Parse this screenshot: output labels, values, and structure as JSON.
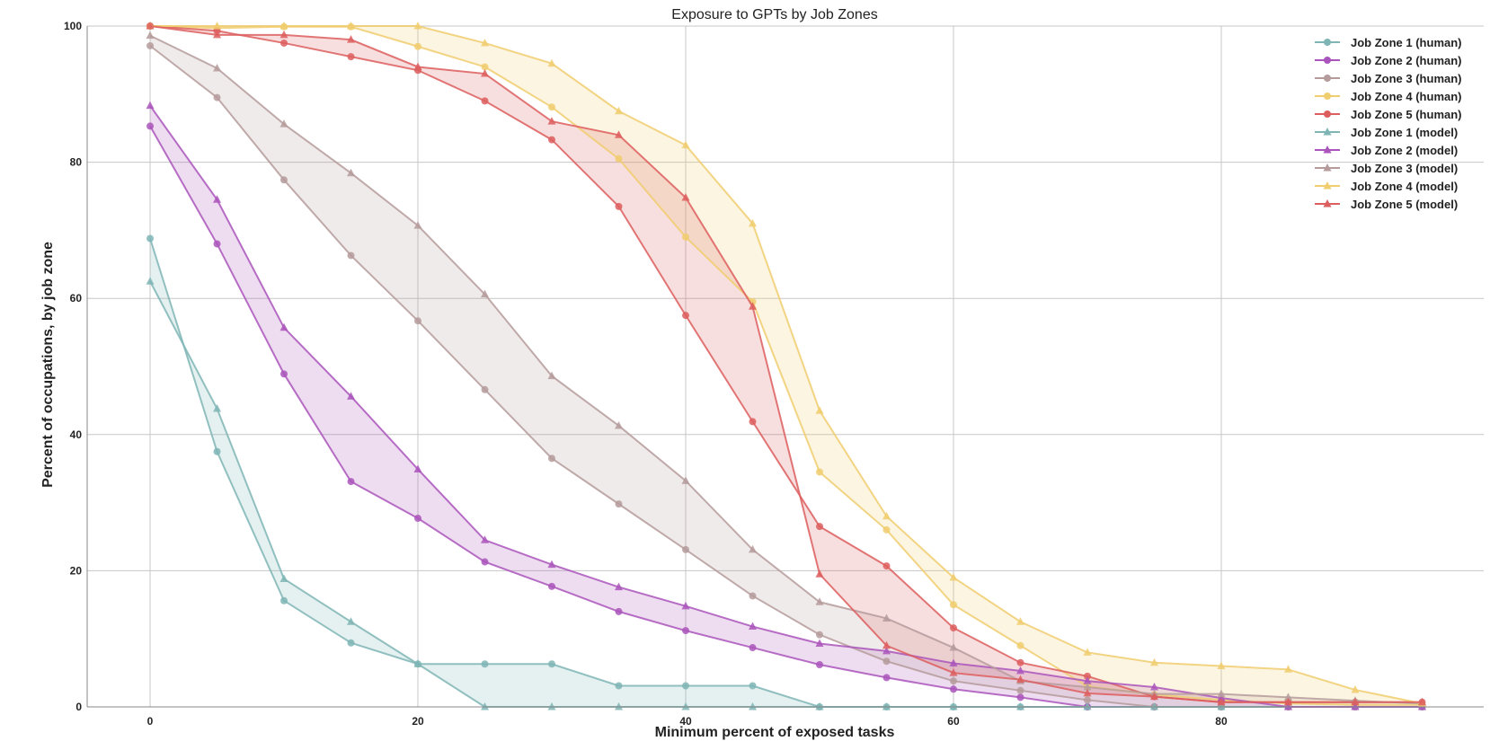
{
  "chart_data": {
    "type": "line",
    "title": "Exposure to GPTs by Job Zones",
    "xlabel": "Minimum percent of exposed tasks",
    "ylabel": "Percent of occupations, by job zone",
    "xlim": [
      -4.7,
      99.6
    ],
    "ylim": [
      0,
      100
    ],
    "xticks": [
      0,
      20,
      40,
      60,
      80
    ],
    "yticks": [
      0,
      20,
      40,
      60,
      80,
      100
    ],
    "grid": true,
    "legend_position": "top-right",
    "x": [
      0,
      5,
      10,
      15,
      20,
      25,
      30,
      35,
      40,
      45,
      50,
      55,
      60,
      65,
      70,
      75,
      80,
      85,
      90,
      95
    ],
    "series": [
      {
        "name": "Job Zone 1 (human)",
        "color": "#7fb5b5",
        "marker": "circle",
        "values": [
          68.8,
          37.5,
          15.6,
          9.4,
          6.3,
          6.3,
          6.3,
          3.1,
          3.1,
          3.1,
          0,
          0,
          0,
          0,
          0,
          0,
          0,
          0,
          0,
          0
        ]
      },
      {
        "name": "Job Zone 2 (human)",
        "color": "#aa55bb",
        "marker": "circle",
        "values": [
          85.3,
          68.0,
          48.9,
          33.1,
          27.7,
          21.3,
          17.7,
          14.0,
          11.2,
          8.7,
          6.2,
          4.3,
          2.6,
          1.4,
          0,
          0,
          0,
          0,
          0,
          0
        ]
      },
      {
        "name": "Job Zone 3 (human)",
        "color": "#b59b9b",
        "marker": "circle",
        "values": [
          97.1,
          89.5,
          77.4,
          66.3,
          56.7,
          46.6,
          36.5,
          29.8,
          23.1,
          16.3,
          10.6,
          6.7,
          3.8,
          2.4,
          1.0,
          0,
          0,
          0,
          0,
          0
        ]
      },
      {
        "name": "Job Zone 4 (human)",
        "color": "#f0cd6e",
        "marker": "circle",
        "values": [
          100,
          99.7,
          99.9,
          99.9,
          97.0,
          94.0,
          88.1,
          80.5,
          69.0,
          59.5,
          34.5,
          26.0,
          15.0,
          9.0,
          3.0,
          1.8,
          1.0,
          0.5,
          0.3,
          0.3
        ]
      },
      {
        "name": "Job Zone 5 (human)",
        "color": "#dd5e5e",
        "marker": "circle",
        "values": [
          100,
          99.3,
          97.5,
          95.5,
          93.5,
          89.0,
          83.3,
          73.5,
          57.5,
          41.9,
          26.5,
          20.7,
          11.6,
          6.5,
          4.5,
          1.5,
          0.7,
          0.7,
          0.7,
          0.7
        ]
      },
      {
        "name": "Job Zone 1 (model)",
        "color": "#7fb5b5",
        "marker": "triangle",
        "values": [
          62.5,
          43.8,
          18.8,
          12.5,
          6.3,
          0,
          0,
          0,
          0,
          0,
          0,
          0,
          0,
          0,
          0,
          0,
          0,
          0,
          0,
          0
        ]
      },
      {
        "name": "Job Zone 2 (model)",
        "color": "#aa55bb",
        "marker": "triangle",
        "values": [
          88.3,
          74.5,
          55.7,
          45.6,
          34.9,
          24.5,
          20.9,
          17.6,
          14.8,
          11.8,
          9.3,
          8.2,
          6.4,
          5.3,
          3.8,
          2.9,
          1.3,
          0,
          0,
          0
        ]
      },
      {
        "name": "Job Zone 3 (model)",
        "color": "#b59b9b",
        "marker": "triangle",
        "values": [
          98.6,
          93.8,
          85.6,
          78.4,
          70.7,
          60.6,
          48.6,
          41.3,
          33.2,
          23.1,
          15.4,
          13.0,
          8.7,
          3.8,
          2.9,
          1.9,
          1.9,
          1.4,
          0.9,
          0.5
        ]
      },
      {
        "name": "Job Zone 4 (model)",
        "color": "#f0cd6e",
        "marker": "triangle",
        "values": [
          100,
          100,
          100,
          100,
          100,
          97.5,
          94.5,
          87.5,
          82.5,
          71.0,
          43.5,
          28.0,
          19.0,
          12.5,
          8.0,
          6.5,
          6.0,
          5.5,
          2.5,
          0.5
        ]
      },
      {
        "name": "Job Zone 5 (model)",
        "color": "#dd5e5e",
        "marker": "triangle",
        "values": [
          100,
          98.7,
          98.7,
          98.0,
          94.0,
          93.0,
          86.0,
          84.0,
          74.8,
          58.8,
          19.5,
          9.0,
          5.0,
          4.0,
          2.0,
          1.5,
          0.7,
          0.7,
          0.7,
          0.7
        ]
      }
    ],
    "shaded_between": [
      [
        0,
        5
      ],
      [
        1,
        6
      ],
      [
        2,
        7
      ],
      [
        3,
        8
      ],
      [
        4,
        9
      ]
    ]
  }
}
